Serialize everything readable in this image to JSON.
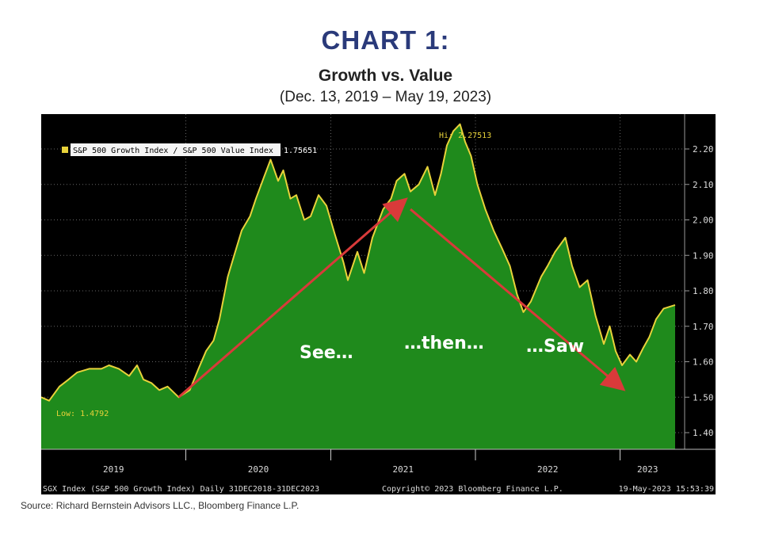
{
  "header": {
    "heading": "CHART 1:",
    "title": "Growth vs. Value",
    "subtitle": "(Dec. 13, 2019 – May 19, 2023)"
  },
  "source": "Source:  Richard Bernstein Advisors LLC., Bloomberg Finance L.P.",
  "footer": {
    "left": "SGX Index (S&P 500 Growth Index)  Daily 31DEC2018-31DEC2023",
    "center": "Copyright© 2023 Bloomberg Finance L.P.",
    "right": "19-May-2023 15:53:39"
  },
  "colors": {
    "background": "#000000",
    "area_fill": "#1f8a1c",
    "line": "#e8d23a",
    "arrow": "#d93a3a",
    "annotation_text": "#ffffff",
    "heading": "#2a3a7a"
  },
  "chart_data": {
    "type": "area",
    "legend": {
      "label": "S&P 500 Growth Index / S&P 500 Value Index",
      "value": "1.75651",
      "placement": "top-left"
    },
    "high_label": "Hi: 2.27513",
    "low_label": "Low: 1.4792",
    "yticks": [
      "2.20",
      "2.10",
      "2.00",
      "1.90",
      "1.80",
      "1.70",
      "1.60",
      "1.50",
      "1.40"
    ],
    "ylim": [
      1.35,
      2.3
    ],
    "year_labels": [
      "2019",
      "2020",
      "2021",
      "2022",
      "2023"
    ],
    "grid": true,
    "annotations": [
      "See…",
      "…then…",
      "…Saw"
    ],
    "arrows": [
      {
        "from": [
          "2019-12-13",
          1.5
        ],
        "to": [
          "2021-06-30",
          2.05
        ]
      },
      {
        "from": [
          "2021-07-20",
          2.03
        ],
        "to": [
          "2022-12-31",
          1.53
        ]
      }
    ],
    "series": [
      {
        "name": "S&P 500 Growth Index / S&P 500 Value Index",
        "x": [
          "2018-12-31",
          "2019-01-20",
          "2019-02-15",
          "2019-03-10",
          "2019-04-01",
          "2019-05-01",
          "2019-06-01",
          "2019-06-20",
          "2019-07-15",
          "2019-08-10",
          "2019-08-30",
          "2019-09-15",
          "2019-10-05",
          "2019-10-25",
          "2019-11-15",
          "2019-12-13",
          "2020-01-10",
          "2020-02-01",
          "2020-02-20",
          "2020-03-10",
          "2020-03-25",
          "2020-04-15",
          "2020-05-01",
          "2020-05-20",
          "2020-06-10",
          "2020-06-25",
          "2020-07-15",
          "2020-08-01",
          "2020-08-20",
          "2020-09-02",
          "2020-09-20",
          "2020-10-05",
          "2020-10-25",
          "2020-11-10",
          "2020-11-30",
          "2020-12-20",
          "2021-01-10",
          "2021-02-01",
          "2021-02-12",
          "2021-03-08",
          "2021-03-25",
          "2021-04-15",
          "2021-05-12",
          "2021-06-01",
          "2021-06-15",
          "2021-07-05",
          "2021-07-20",
          "2021-08-10",
          "2021-09-01",
          "2021-09-20",
          "2021-10-05",
          "2021-10-20",
          "2021-11-05",
          "2021-11-22",
          "2021-12-05",
          "2021-12-20",
          "2022-01-05",
          "2022-01-25",
          "2022-02-15",
          "2022-03-08",
          "2022-03-28",
          "2022-04-15",
          "2022-05-01",
          "2022-05-20",
          "2022-06-15",
          "2022-07-01",
          "2022-07-20",
          "2022-08-15",
          "2022-09-01",
          "2022-09-20",
          "2022-10-10",
          "2022-10-30",
          "2022-11-20",
          "2022-12-05",
          "2022-12-20",
          "2023-01-05",
          "2023-01-25",
          "2023-02-10",
          "2023-02-28",
          "2023-03-15",
          "2023-04-01",
          "2023-04-20",
          "2023-05-19"
        ],
        "values": [
          1.5,
          1.49,
          1.53,
          1.55,
          1.57,
          1.58,
          1.58,
          1.59,
          1.58,
          1.56,
          1.59,
          1.55,
          1.54,
          1.52,
          1.53,
          1.5,
          1.52,
          1.58,
          1.63,
          1.66,
          1.72,
          1.84,
          1.9,
          1.97,
          2.01,
          2.06,
          2.12,
          2.17,
          2.11,
          2.14,
          2.06,
          2.07,
          2.0,
          2.01,
          2.07,
          2.04,
          1.96,
          1.88,
          1.83,
          1.91,
          1.85,
          1.95,
          2.03,
          2.06,
          2.11,
          2.13,
          2.08,
          2.1,
          2.15,
          2.07,
          2.13,
          2.21,
          2.25,
          2.27,
          2.22,
          2.18,
          2.1,
          2.03,
          1.97,
          1.92,
          1.87,
          1.79,
          1.74,
          1.77,
          1.84,
          1.87,
          1.91,
          1.95,
          1.87,
          1.81,
          1.83,
          1.73,
          1.65,
          1.7,
          1.63,
          1.59,
          1.62,
          1.6,
          1.64,
          1.67,
          1.72,
          1.75,
          1.76
        ]
      }
    ]
  }
}
